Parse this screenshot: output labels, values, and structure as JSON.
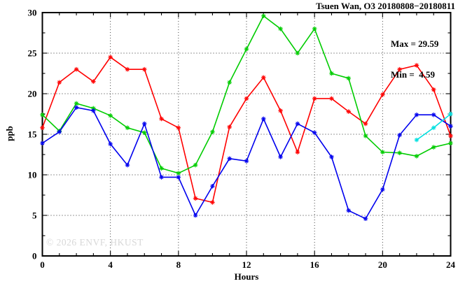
{
  "header": {
    "title": "Tsuen Wan, O3 20180808−20180811"
  },
  "stats": {
    "max_label": "Max = 29.59",
    "min_label": "Min =  4.59"
  },
  "watermark": {
    "text": "© 2026 ENVF, HKUST",
    "color": "#d8d8d8"
  },
  "chart_data": {
    "type": "line",
    "title": "Tsuen Wan, O3 20180808−20180811",
    "xlabel": "Hours",
    "ylabel": "ppb",
    "xlim": [
      0,
      24
    ],
    "ylim": [
      0,
      30
    ],
    "x_major_ticks": [
      0,
      4,
      8,
      12,
      16,
      20,
      24
    ],
    "x_minor_tick_step": 1,
    "y_major_ticks": [
      0,
      5,
      10,
      15,
      20,
      25,
      30
    ],
    "y_minor_tick_step": 2.5,
    "grid": "dotted lines at major ticks",
    "legend_position": "none",
    "marker": "star",
    "annotations": {
      "max": 29.59,
      "min": 4.59
    },
    "x": [
      0,
      1,
      2,
      3,
      4,
      5,
      6,
      7,
      8,
      9,
      10,
      11,
      12,
      13,
      14,
      15,
      16,
      17,
      18,
      19,
      20,
      21,
      22,
      23,
      24
    ],
    "series": [
      {
        "name": "day-1-red",
        "color": "#ff0000",
        "values": [
          15.8,
          21.4,
          23.0,
          21.5,
          24.5,
          23.0,
          23.0,
          16.9,
          15.8,
          7.1,
          6.6,
          15.9,
          19.4,
          22.0,
          17.9,
          12.8,
          19.4,
          19.4,
          17.8,
          16.3,
          19.9,
          23.0,
          23.5,
          20.5,
          14.8
        ]
      },
      {
        "name": "day-2-green",
        "color": "#00cc00",
        "values": [
          17.4,
          15.4,
          18.8,
          18.2,
          17.3,
          15.8,
          15.2,
          10.8,
          10.2,
          11.2,
          15.3,
          21.4,
          25.5,
          29.59,
          28.0,
          25.0,
          28.0,
          22.5,
          21.9,
          14.8,
          12.8,
          12.7,
          12.3,
          13.4,
          13.9
        ]
      },
      {
        "name": "day-3-blue",
        "color": "#0000ee",
        "values": [
          13.9,
          15.3,
          18.3,
          17.9,
          13.8,
          11.2,
          16.3,
          9.7,
          9.7,
          5.0,
          8.6,
          12.0,
          11.7,
          16.9,
          12.2,
          16.3,
          15.2,
          12.2,
          5.6,
          4.59,
          8.2,
          14.9,
          17.4,
          17.4,
          16.0
        ]
      },
      {
        "name": "day-4-cyan",
        "color": "#00e0e0",
        "x": [
          22,
          23,
          24
        ],
        "values": [
          14.3,
          15.8,
          17.5
        ]
      }
    ]
  }
}
